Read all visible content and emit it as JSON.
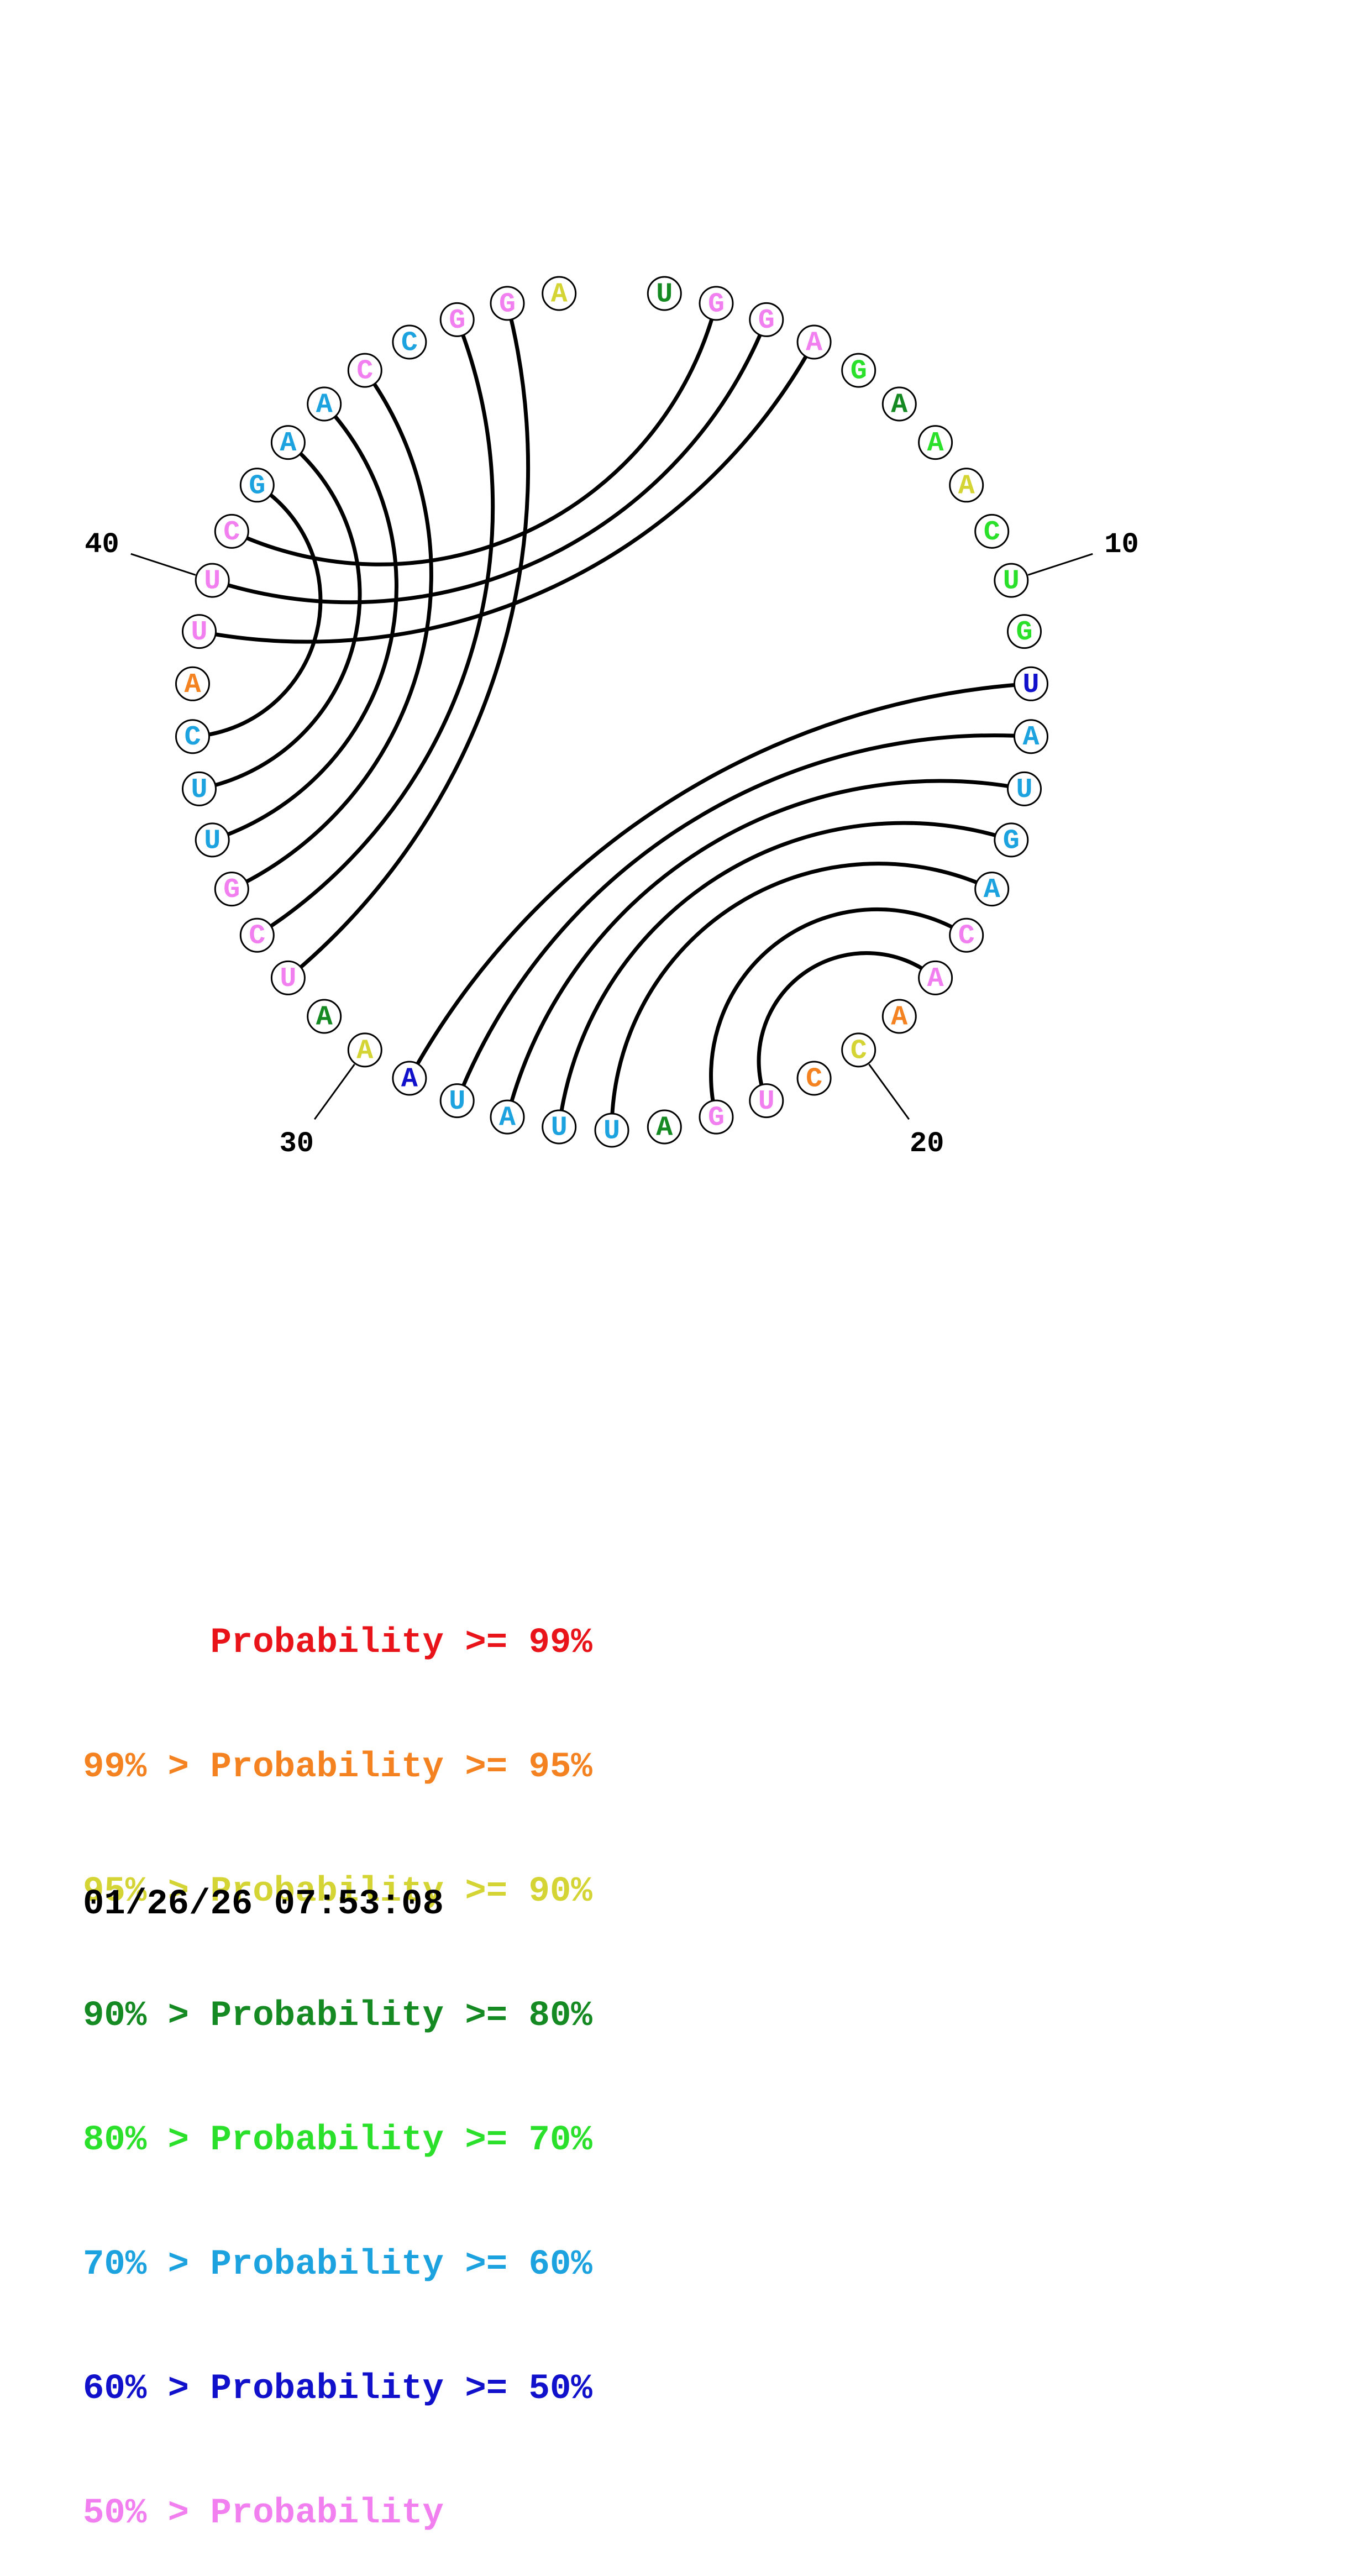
{
  "colors": {
    "red": "#e8141a",
    "orange": "#f58220",
    "yellow": "#d4d434",
    "darkgreen": "#158a22",
    "green": "#2be02b",
    "cyan": "#1da2e0",
    "blue": "#1111cc",
    "pink": "#f27ff0"
  },
  "sequence": [
    {
      "base": "U",
      "color": "darkgreen"
    },
    {
      "base": "G",
      "color": "pink"
    },
    {
      "base": "G",
      "color": "pink"
    },
    {
      "base": "A",
      "color": "pink"
    },
    {
      "base": "G",
      "color": "green"
    },
    {
      "base": "A",
      "color": "darkgreen"
    },
    {
      "base": "A",
      "color": "green"
    },
    {
      "base": "A",
      "color": "yellow"
    },
    {
      "base": "C",
      "color": "green"
    },
    {
      "base": "U",
      "color": "green"
    },
    {
      "base": "G",
      "color": "green"
    },
    {
      "base": "U",
      "color": "blue"
    },
    {
      "base": "A",
      "color": "cyan"
    },
    {
      "base": "U",
      "color": "cyan"
    },
    {
      "base": "G",
      "color": "cyan"
    },
    {
      "base": "A",
      "color": "cyan"
    },
    {
      "base": "C",
      "color": "pink"
    },
    {
      "base": "A",
      "color": "pink"
    },
    {
      "base": "A",
      "color": "orange"
    },
    {
      "base": "C",
      "color": "yellow"
    },
    {
      "base": "C",
      "color": "orange"
    },
    {
      "base": "U",
      "color": "pink"
    },
    {
      "base": "G",
      "color": "pink"
    },
    {
      "base": "A",
      "color": "darkgreen"
    },
    {
      "base": "U",
      "color": "cyan"
    },
    {
      "base": "U",
      "color": "cyan"
    },
    {
      "base": "A",
      "color": "cyan"
    },
    {
      "base": "U",
      "color": "cyan"
    },
    {
      "base": "A",
      "color": "blue"
    },
    {
      "base": "A",
      "color": "yellow"
    },
    {
      "base": "A",
      "color": "darkgreen"
    },
    {
      "base": "U",
      "color": "pink"
    },
    {
      "base": "C",
      "color": "pink"
    },
    {
      "base": "G",
      "color": "pink"
    },
    {
      "base": "U",
      "color": "cyan"
    },
    {
      "base": "U",
      "color": "cyan"
    },
    {
      "base": "C",
      "color": "cyan"
    },
    {
      "base": "A",
      "color": "orange"
    },
    {
      "base": "U",
      "color": "pink"
    },
    {
      "base": "U",
      "color": "pink"
    },
    {
      "base": "C",
      "color": "pink"
    },
    {
      "base": "G",
      "color": "cyan"
    },
    {
      "base": "A",
      "color": "cyan"
    },
    {
      "base": "A",
      "color": "cyan"
    },
    {
      "base": "C",
      "color": "pink"
    },
    {
      "base": "C",
      "color": "cyan"
    },
    {
      "base": "G",
      "color": "pink"
    },
    {
      "base": "G",
      "color": "pink"
    },
    {
      "base": "A",
      "color": "yellow"
    }
  ],
  "pairs": [
    [
      2,
      41
    ],
    [
      3,
      40
    ],
    [
      4,
      39
    ],
    [
      12,
      29
    ],
    [
      13,
      28
    ],
    [
      14,
      27
    ],
    [
      15,
      26
    ],
    [
      16,
      25
    ],
    [
      17,
      23
    ],
    [
      18,
      22
    ],
    [
      32,
      48
    ],
    [
      33,
      47
    ],
    [
      34,
      45
    ],
    [
      35,
      44
    ],
    [
      36,
      43
    ],
    [
      37,
      42
    ]
  ],
  "number_labels": [
    {
      "index": 10,
      "text": "10"
    },
    {
      "index": 20,
      "text": "20"
    },
    {
      "index": 30,
      "text": "30"
    },
    {
      "index": 40,
      "text": "40"
    }
  ],
  "legend": [
    {
      "prefix": "",
      "label": "Probability",
      "suffix": ">= 99%",
      "color": "red"
    },
    {
      "prefix": "99% >",
      "label": "Probability",
      "suffix": ">= 95%",
      "color": "orange"
    },
    {
      "prefix": "95% >",
      "label": "Probability",
      "suffix": ">= 90%",
      "color": "yellow"
    },
    {
      "prefix": "90% >",
      "label": "Probability",
      "suffix": ">= 80%",
      "color": "darkgreen"
    },
    {
      "prefix": "80% >",
      "label": "Probability",
      "suffix": ">= 70%",
      "color": "green"
    },
    {
      "prefix": "70% >",
      "label": "Probability",
      "suffix": ">= 60%",
      "color": "cyan"
    },
    {
      "prefix": "60% >",
      "label": "Probability",
      "suffix": ">= 50%",
      "color": "blue"
    },
    {
      "prefix": "50% >",
      "label": "Probability",
      "suffix": "",
      "color": "pink"
    }
  ],
  "timestamp": "01/26/26 07:53:08"
}
